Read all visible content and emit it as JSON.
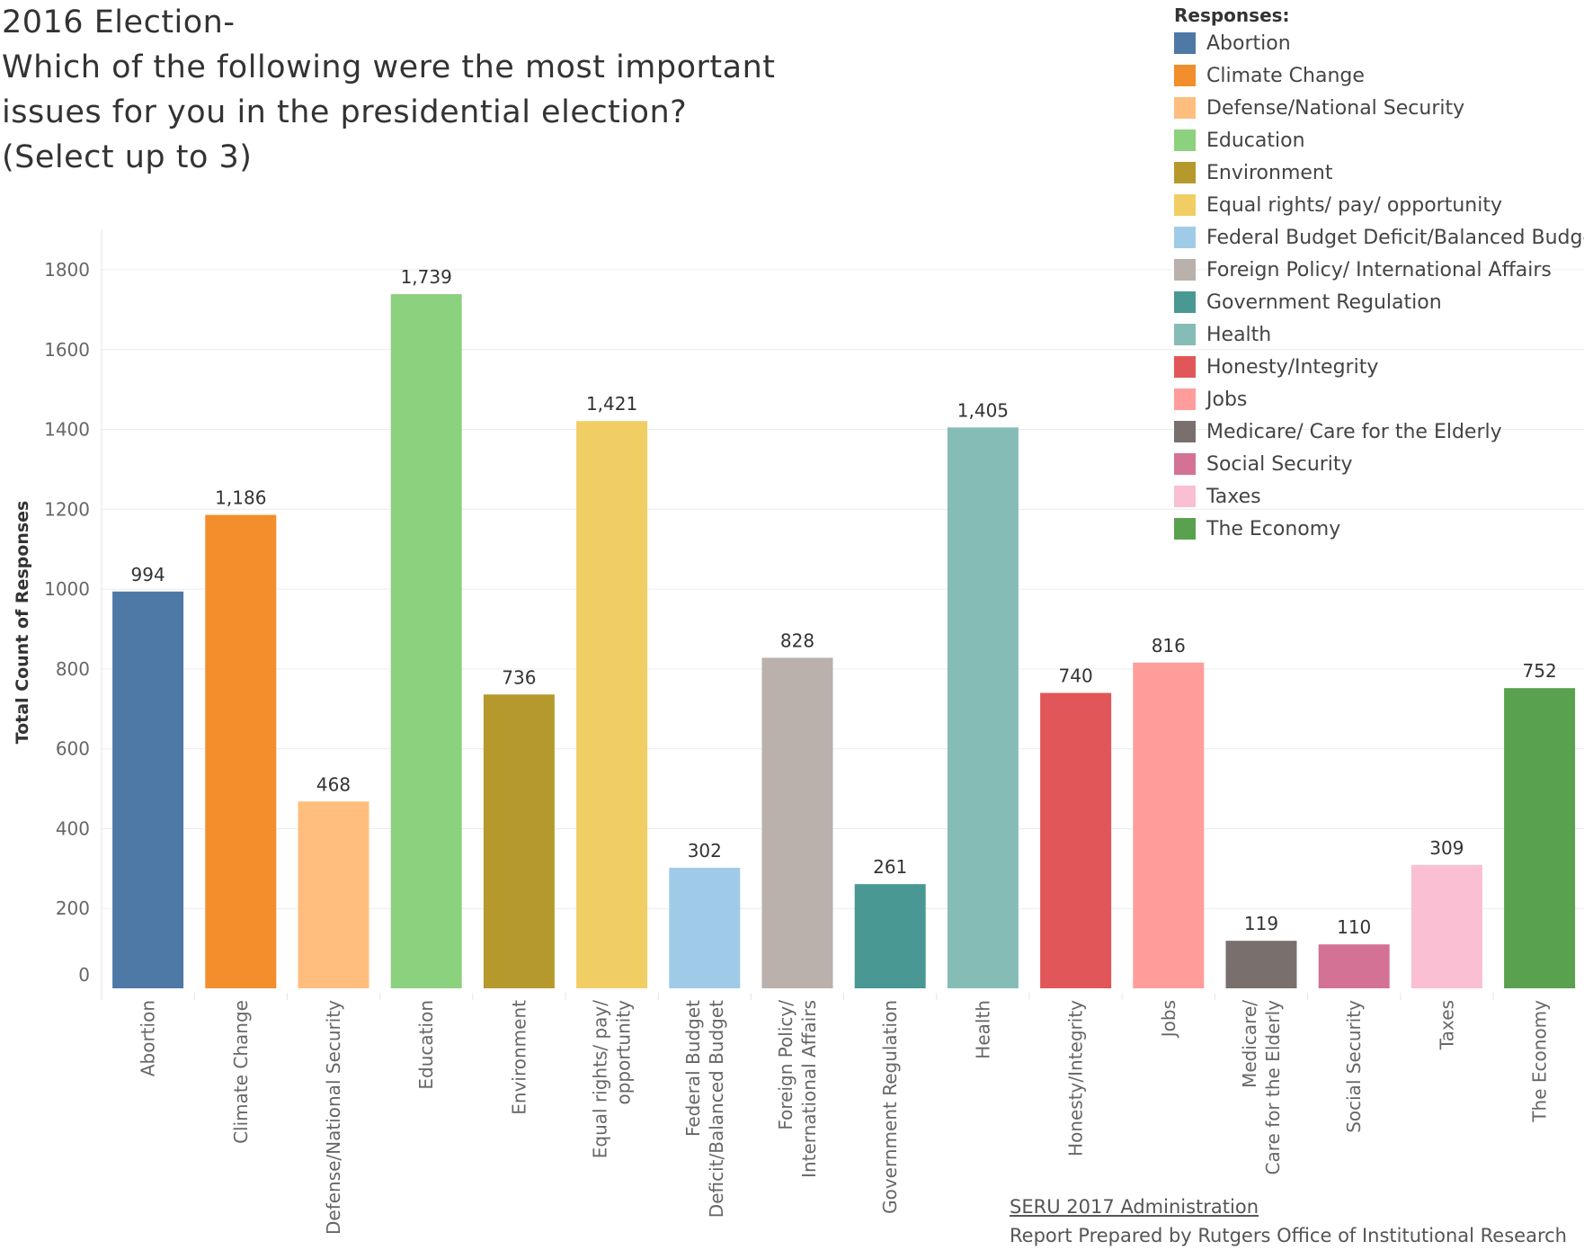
{
  "title": {
    "lines": [
      "2016 Election-",
      "Which of the following were the most important",
      "issues for you in the presidential election?",
      "(Select up to 3)"
    ]
  },
  "legend": {
    "title": "Responses:"
  },
  "footer": {
    "link": "SERU 2017 Administration",
    "credit": "Report Prepared by Rutgers Office of Institutional Research"
  },
  "chart_data": {
    "type": "bar",
    "ylabel": "Total Count of Responses",
    "xlabel": "",
    "ylim": [
      0,
      1800
    ],
    "yticks": [
      0,
      200,
      400,
      600,
      800,
      1000,
      1200,
      1400,
      1600,
      1800
    ],
    "grid": true,
    "legend_position": "top-right",
    "categories": [
      "Abortion",
      "Climate Change",
      "Defense/National Security",
      "Education",
      "Environment",
      "Equal rights/ pay/ opportunity",
      "Federal Budget Deficit/Balanced Budget",
      "Foreign Policy/ International Affairs",
      "Government Regulation",
      "Health",
      "Honesty/Integrity",
      "Jobs",
      "Medicare/ Care for the Elderly",
      "Social Security",
      "Taxes",
      "The Economy"
    ],
    "tick_labels": [
      [
        "Abortion"
      ],
      [
        "Climate Change"
      ],
      [
        "Defense/National Security"
      ],
      [
        "Education"
      ],
      [
        "Environment"
      ],
      [
        "Equal rights/ pay/",
        "opportunity"
      ],
      [
        "Federal Budget",
        "Deficit/Balanced Budget"
      ],
      [
        "Foreign Policy/",
        "International Affairs"
      ],
      [
        "Government Regulation"
      ],
      [
        "Health"
      ],
      [
        "Honesty/Integrity"
      ],
      [
        "Jobs"
      ],
      [
        "Medicare/",
        "Care for the Elderly"
      ],
      [
        "Social Security"
      ],
      [
        "Taxes"
      ],
      [
        "The Economy"
      ]
    ],
    "values": [
      994,
      1186,
      468,
      1739,
      736,
      1421,
      302,
      828,
      261,
      1405,
      740,
      816,
      119,
      110,
      309,
      752
    ],
    "value_labels": [
      "994",
      "1,186",
      "468",
      "1,739",
      "736",
      "1,421",
      "302",
      "828",
      "261",
      "1,405",
      "740",
      "816",
      "119",
      "110",
      "309",
      "752"
    ],
    "colors": [
      "#4e79a7",
      "#f28e2b",
      "#ffbe7d",
      "#8cd17d",
      "#b6992d",
      "#f1ce63",
      "#a0cbe8",
      "#bab0ac",
      "#499894",
      "#86bcb6",
      "#e15759",
      "#ff9d9a",
      "#79706e",
      "#d37295",
      "#fabfd2",
      "#59a14f"
    ]
  }
}
